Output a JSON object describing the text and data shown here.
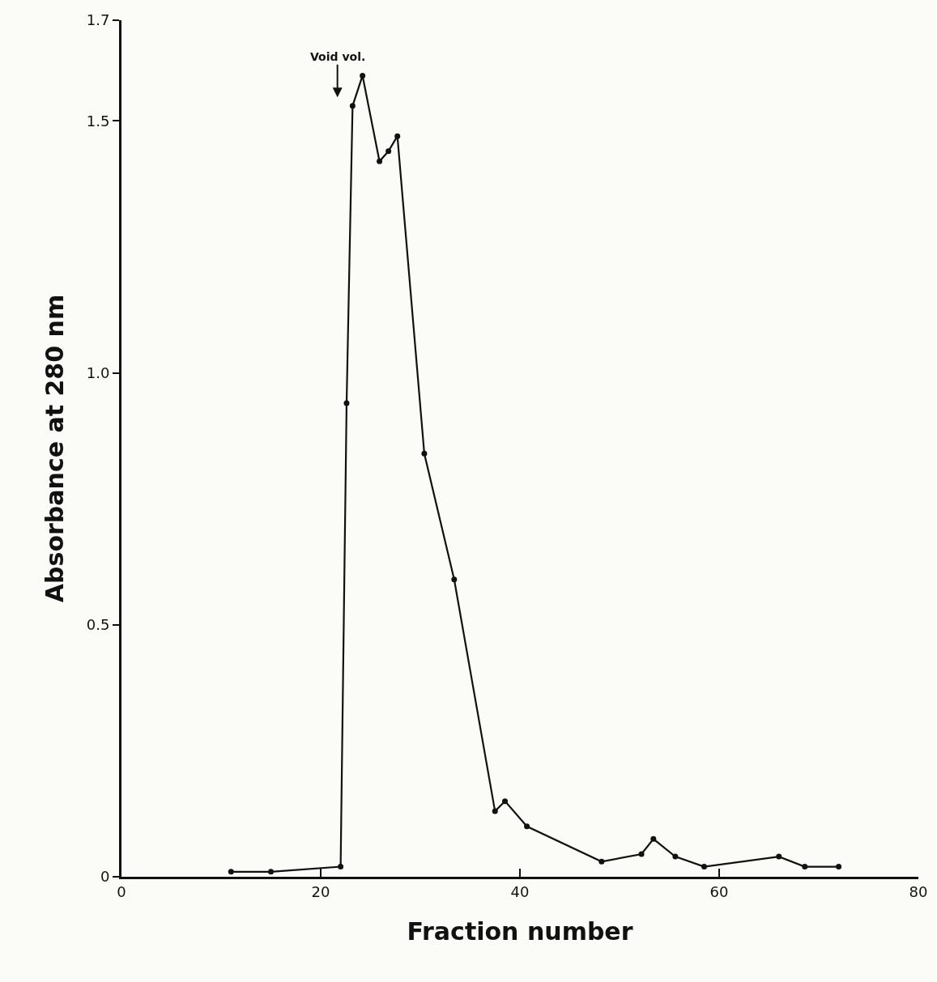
{
  "chart_data": {
    "type": "line",
    "xlabel": "Fraction number",
    "ylabel": "Absorbance at 280 nm",
    "x": [
      11,
      15,
      22,
      22.6,
      23.2,
      24.2,
      25.9,
      26.8,
      27.7,
      30.4,
      33.4,
      37.5,
      38.5,
      40.7,
      48.2,
      52.2,
      53.4,
      55.6,
      58.5,
      66,
      68.6,
      72
    ],
    "series": [
      {
        "color": "#111111",
        "values": [
          0.01,
          0.01,
          0.02,
          0.94,
          1.53,
          1.59,
          1.42,
          1.44,
          1.47,
          0.84,
          0.59,
          0.13,
          0.15,
          0.1,
          0.03,
          0.045,
          0.075,
          0.04,
          0.02,
          0.04,
          0.02,
          0.02
        ]
      }
    ],
    "xlim": [
      0,
      80
    ],
    "ylim": [
      0,
      1.7
    ],
    "xticks": [
      0,
      20,
      40,
      60,
      80
    ],
    "yticks": [
      0,
      {
        "value": 0.5,
        "label": "0.5"
      },
      {
        "value": 1.0,
        "label": "1.0"
      },
      {
        "value": 1.5,
        "label": "1.5"
      },
      {
        "value": 1.7,
        "label": "1.7"
      }
    ],
    "annotations": [
      "Void vol."
    ],
    "marker": "circle",
    "line_style": "solid",
    "grid": false
  }
}
